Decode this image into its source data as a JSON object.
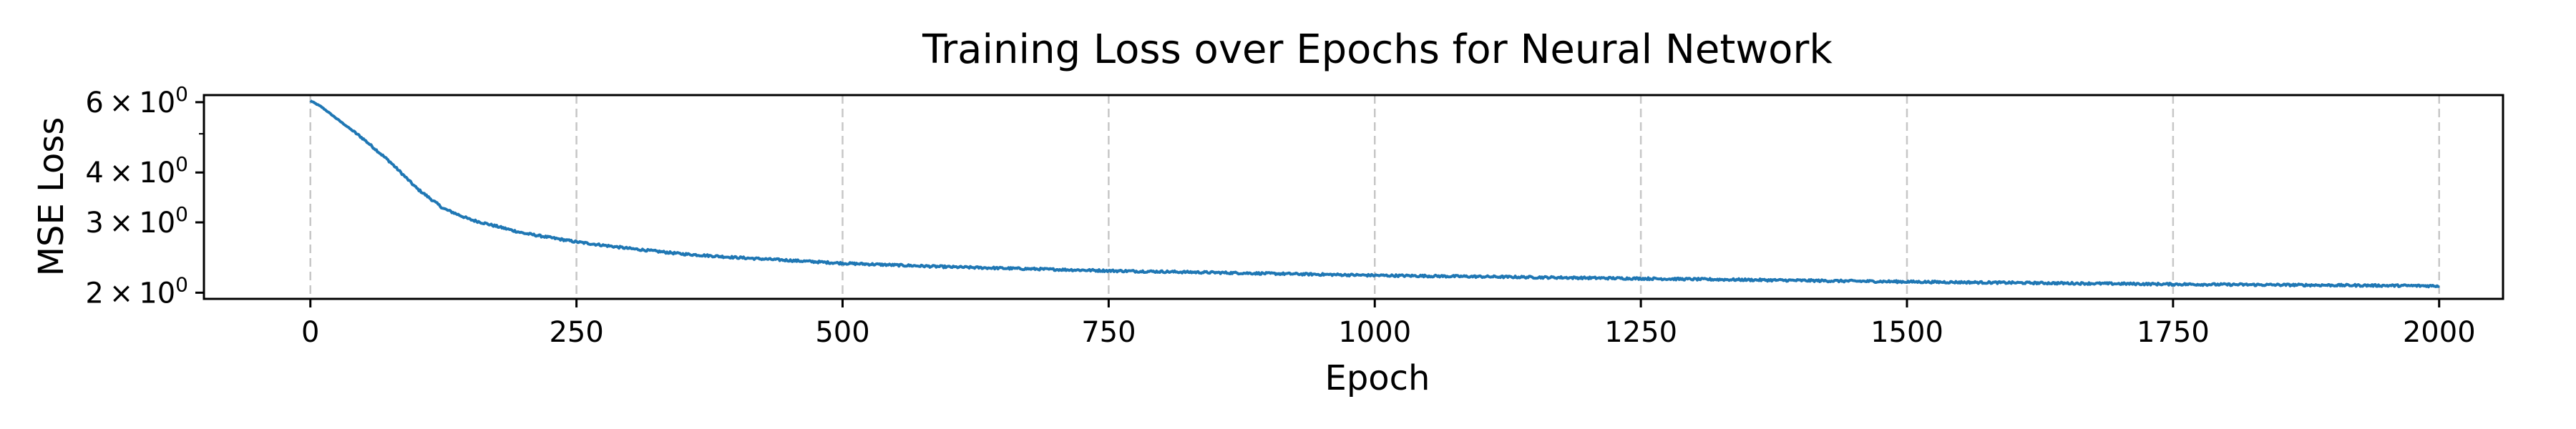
{
  "chart_data": {
    "type": "line",
    "title": "Training Loss over Epochs for Neural Network",
    "xlabel": "Epoch",
    "ylabel": "MSE Loss",
    "xlim": [
      -100,
      2060
    ],
    "ylim": [
      1.93,
      6.25
    ],
    "yscale": "log",
    "grid": "x-only, dashed",
    "x_ticks": [
      0,
      250,
      500,
      750,
      1000,
      1250,
      1500,
      1750,
      2000
    ],
    "x_tick_labels": [
      "0",
      "250",
      "500",
      "750",
      "1000",
      "1250",
      "1500",
      "1750",
      "2000"
    ],
    "y_ticks": [
      {
        "value": 2,
        "base": "2",
        "times": "×",
        "pow_base": "10",
        "exp": "0"
      },
      {
        "value": 3,
        "base": "3",
        "times": "×",
        "pow_base": "10",
        "exp": "0"
      },
      {
        "value": 4,
        "base": "4",
        "times": "×",
        "pow_base": "10",
        "exp": "0"
      },
      {
        "value": 6,
        "base": "6",
        "times": "×",
        "pow_base": "10",
        "exp": "0"
      }
    ],
    "y_minor_ticks": [
      5
    ],
    "series": [
      {
        "color": "#1f77b4",
        "x": [
          0,
          10,
          25,
          50,
          75,
          100,
          125,
          150,
          200,
          250,
          300,
          350,
          400,
          500,
          600,
          750,
          1000,
          1250,
          1500,
          1750,
          2000
        ],
        "y": [
          6.05,
          5.85,
          5.45,
          4.85,
          4.25,
          3.65,
          3.25,
          3.05,
          2.82,
          2.68,
          2.58,
          2.5,
          2.45,
          2.37,
          2.32,
          2.27,
          2.21,
          2.17,
          2.13,
          2.1,
          2.08
        ]
      }
    ]
  }
}
